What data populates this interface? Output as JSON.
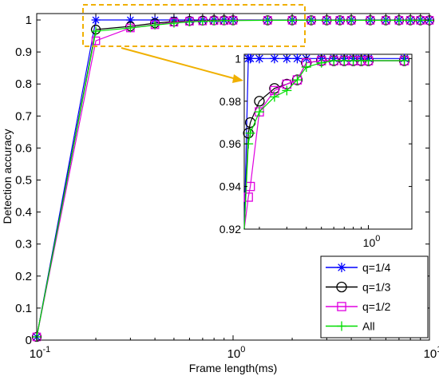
{
  "chart_data": {
    "type": "line",
    "xlabel": "Frame length(ms)",
    "ylabel": "Detection accuracy",
    "xscale": "log",
    "xlim": [
      0.1,
      10
    ],
    "ylim": [
      0,
      1.02
    ],
    "grid": false,
    "legend_position": "bottom-right",
    "x_ticks": [
      {
        "value": 0.1,
        "base": "10",
        "exp": "-1"
      },
      {
        "value": 1,
        "base": "10",
        "exp": "0"
      },
      {
        "value": 10,
        "base": "10",
        "exp": "1"
      }
    ],
    "y_ticks": [
      "0",
      "0.1",
      "0.2",
      "0.3",
      "0.4",
      "0.5",
      "0.6",
      "0.7",
      "0.8",
      "0.9",
      "1"
    ],
    "x": [
      0.1,
      0.2,
      0.3,
      0.4,
      0.5,
      0.6,
      0.7,
      0.8,
      0.9,
      1.0,
      1.5,
      2.0,
      2.5,
      3.0,
      3.5,
      4.0,
      5.0,
      6.0,
      7.0,
      8.0,
      9.0,
      10.0
    ],
    "series": [
      {
        "name": "q=1/4",
        "color": "#0000ff",
        "marker": "asterisk",
        "values": [
          0.01,
          1.0,
          1.0,
          1.0,
          1.0,
          1.0,
          1.0,
          1.0,
          1.0,
          1.0,
          1.0,
          1.0,
          1.0,
          1.0,
          1.0,
          1.0,
          1.0,
          1.0,
          1.0,
          1.0,
          1.0,
          1.0
        ]
      },
      {
        "name": "q=1/3",
        "color": "#000000",
        "marker": "circle",
        "values": [
          0.01,
          0.97,
          0.98,
          0.99,
          0.995,
          0.997,
          0.998,
          0.999,
          0.999,
          0.999,
          0.999,
          0.999,
          0.999,
          0.999,
          0.999,
          0.999,
          0.999,
          0.999,
          0.999,
          0.999,
          0.999,
          0.999
        ]
      },
      {
        "name": "q=1/2",
        "color": "#e000e0",
        "marker": "square",
        "values": [
          0.01,
          0.935,
          0.975,
          0.985,
          0.993,
          0.996,
          0.997,
          0.998,
          0.998,
          0.999,
          0.999,
          0.999,
          0.999,
          0.999,
          0.999,
          0.999,
          0.999,
          0.999,
          0.999,
          0.999,
          0.999,
          0.999
        ]
      },
      {
        "name": "All",
        "color": "#00dd00",
        "marker": "plus",
        "values": [
          0.01,
          0.965,
          0.975,
          0.984,
          0.99,
          0.994,
          0.996,
          0.997,
          0.998,
          0.998,
          0.999,
          0.999,
          0.999,
          0.999,
          0.999,
          0.999,
          0.999,
          0.999,
          0.999,
          0.999,
          0.999,
          0.999
        ]
      }
    ],
    "inset": {
      "xscale": "log",
      "xlim": [
        0.16,
        1.9
      ],
      "ylim": [
        0.92,
        1.002
      ],
      "y_ticks": [
        "0.92",
        "0.94",
        "0.96",
        "0.98",
        "1"
      ],
      "y_tick_values": [
        0.92,
        0.94,
        0.96,
        0.98,
        1.0
      ],
      "x_ticks": [
        {
          "value": 1,
          "base": "10",
          "exp": "0"
        }
      ],
      "series": [
        {
          "name": "q=1/4",
          "x": [
            0.16,
            0.17,
            0.175,
            0.2,
            0.25,
            0.3,
            0.35,
            0.4,
            0.5,
            0.6,
            0.7,
            0.8,
            0.9,
            1.0,
            1.7
          ],
          "values": [
            0.92,
            1.0,
            1.0,
            1.0,
            1.0,
            1.0,
            1.0,
            1.0,
            1.0,
            1.0,
            1.0,
            1.0,
            1.0,
            1.0,
            1.0
          ]
        },
        {
          "name": "q=1/3",
          "x": [
            0.16,
            0.17,
            0.175,
            0.2,
            0.25,
            0.3,
            0.35,
            0.4,
            0.5,
            0.6,
            0.7,
            0.8,
            0.9,
            1.0,
            1.7
          ],
          "values": [
            0.92,
            0.965,
            0.97,
            0.98,
            0.986,
            0.988,
            0.99,
            0.998,
            0.999,
            0.999,
            0.999,
            0.999,
            0.999,
            0.999,
            0.999
          ]
        },
        {
          "name": "q=1/2",
          "x": [
            0.16,
            0.17,
            0.175,
            0.2,
            0.25,
            0.3,
            0.35,
            0.4,
            0.5,
            0.6,
            0.7,
            0.8,
            0.9,
            1.0,
            1.7
          ],
          "values": [
            0.92,
            0.935,
            0.94,
            0.975,
            0.985,
            0.988,
            0.99,
            0.998,
            0.999,
            0.999,
            0.999,
            0.999,
            0.999,
            0.999,
            0.999
          ]
        },
        {
          "name": "All",
          "x": [
            0.16,
            0.17,
            0.175,
            0.2,
            0.25,
            0.3,
            0.35,
            0.4,
            0.5,
            0.6,
            0.7,
            0.8,
            0.9,
            1.0,
            1.7
          ],
          "values": [
            0.92,
            0.96,
            0.965,
            0.975,
            0.982,
            0.985,
            0.99,
            0.996,
            0.998,
            0.999,
            0.999,
            0.999,
            0.999,
            0.999,
            0.999
          ]
        }
      ]
    },
    "annotations": [
      {
        "type": "dashed-box",
        "color": "#f0b000",
        "target": "top region near y=1"
      },
      {
        "type": "arrow",
        "color": "#f0b000",
        "from": "dashed-box",
        "to": "inset"
      }
    ]
  }
}
